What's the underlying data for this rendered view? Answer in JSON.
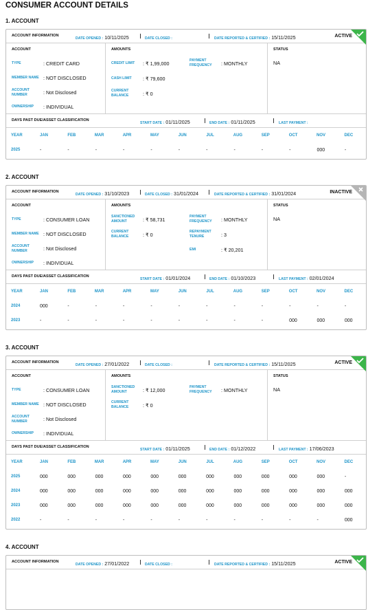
{
  "title": "CONSUMER ACCOUNT DETAILS",
  "accounts": [
    {
      "heading": "1. ACCOUNT",
      "info": {
        "label": "ACCOUNT INFORMATION",
        "items": [
          {
            "label": "DATE OPENED :",
            "value": "10/11/2025"
          },
          {
            "label": "DATE CLOSED :"
          },
          {
            "label": "DATE REPORTED & CERTIFIED :",
            "value": "15/11/2025"
          }
        ],
        "status": "ACTIVE",
        "status_color": "#3cb54a",
        "status_icon": "check"
      },
      "account": {
        "title": "ACCOUNT",
        "fields": [
          {
            "label": "TYPE",
            "value": ": CREDIT CARD"
          },
          {
            "label": "MEMBER NAME",
            "value": ": NOT DISCLOSED"
          },
          {
            "label": "ACCOUNT NUMBER",
            "value": ": Not Disclosed"
          },
          {
            "label": "OWNERSHIP",
            "value": ": INDIVIDUAL"
          }
        ]
      },
      "amounts": {
        "title": "AMOUNTS",
        "left": [
          {
            "label": "CREDIT LIMIT",
            "value": ": ₹ 1,99,000"
          },
          {
            "label": "CASH LIMIT",
            "value": ": ₹ 79,600"
          },
          {
            "label": "CURRENT BALANCE",
            "value": ": ₹ 0"
          }
        ],
        "right": [
          {
            "label": "PAYMENT FREQUENCY",
            "value": ": MONTHLY"
          }
        ]
      },
      "status": {
        "title": "STATUS",
        "value": "NA"
      },
      "dpd": {
        "label": "DAYS PAST DUE/ASSET CLASSIFICATION",
        "items": [
          {
            "label": "START DATE :",
            "value": "01/11/2025"
          },
          {
            "label": "END DATE :",
            "value": "01/11/2025"
          },
          {
            "label": "LAST PAYMENT :"
          }
        ]
      },
      "table": {
        "header": [
          "YEAR",
          "JAN",
          "FEB",
          "MAR",
          "APR",
          "MAY",
          "JUN",
          "JUL",
          "AUG",
          "SEP",
          "OCT",
          "NOV",
          "DEC"
        ],
        "rows": [
          [
            "2025",
            "-",
            "-",
            "-",
            "-",
            "-",
            "-",
            "-",
            "-",
            "-",
            "-",
            "000",
            "-"
          ]
        ]
      }
    },
    {
      "heading": "2. ACCOUNT",
      "info": {
        "label": "ACCOUNT INFORMATION",
        "items": [
          {
            "label": "DATE OPENED :",
            "value": "31/10/2023"
          },
          {
            "label": "DATE CLOSED :",
            "value": "31/01/2024"
          },
          {
            "label": "DATE REPORTED & CERTIFIED :",
            "value": "31/01/2024"
          }
        ],
        "status": "INACTIVE",
        "status_color": "#b5b5b5",
        "status_icon": "cross"
      },
      "account": {
        "title": "ACCOUNT",
        "fields": [
          {
            "label": "TYPE",
            "value": ": CONSUMER LOAN"
          },
          {
            "label": "MEMBER NAME",
            "value": ": NOT DISCLOSED"
          },
          {
            "label": "ACCOUNT NUMBER",
            "value": ": Not Disclosed"
          },
          {
            "label": "OWNERSHIP",
            "value": ": INDIVIDUAL"
          }
        ]
      },
      "amounts": {
        "title": "AMOUNTS",
        "left": [
          {
            "label": "SANCTIONED AMOUNT",
            "value": ": ₹ 58,731"
          },
          {
            "label": "CURRENT BALANCE",
            "value": ": ₹ 0"
          }
        ],
        "right": [
          {
            "label": "PAYMENT FREQUENCY",
            "value": ": MONTHLY"
          },
          {
            "label": "REPAYMENT TENURE",
            "value": ": 3"
          },
          {
            "label": "EMI",
            "value": ": ₹ 20,201"
          }
        ]
      },
      "status": {
        "title": "STATUS",
        "value": "NA"
      },
      "dpd": {
        "label": "DAYS PAST DUE/ASSET CLASSIFICATION",
        "items": [
          {
            "label": "START DATE :",
            "value": "01/01/2024"
          },
          {
            "label": "END DATE :",
            "value": "01/10/2023"
          },
          {
            "label": "LAST PAYMENT :",
            "value": "02/01/2024"
          }
        ]
      },
      "table": {
        "header": [
          "YEAR",
          "JAN",
          "FEB",
          "MAR",
          "APR",
          "MAY",
          "JUN",
          "JUL",
          "AUG",
          "SEP",
          "OCT",
          "NOV",
          "DEC"
        ],
        "rows": [
          [
            "2024",
            "000",
            "-",
            "-",
            "-",
            "-",
            "-",
            "-",
            "-",
            "-",
            "-",
            "-",
            "-"
          ],
          [
            "2023",
            "-",
            "-",
            "-",
            "-",
            "-",
            "-",
            "-",
            "-",
            "-",
            "000",
            "000",
            "000"
          ]
        ]
      }
    },
    {
      "heading": "3. ACCOUNT",
      "info": {
        "label": "ACCOUNT INFORMATION",
        "items": [
          {
            "label": "DATE OPENED :",
            "value": "27/01/2022"
          },
          {
            "label": "DATE CLOSED :"
          },
          {
            "label": "DATE REPORTED & CERTIFIED :",
            "value": "15/11/2025"
          }
        ],
        "status": "ACTIVE",
        "status_color": "#3cb54a",
        "status_icon": "check"
      },
      "account": {
        "title": "ACCOUNT",
        "fields": [
          {
            "label": "TYPE",
            "value": ": CONSUMER LOAN"
          },
          {
            "label": "MEMBER NAME",
            "value": ": NOT DISCLOSED"
          },
          {
            "label": "ACCOUNT NUMBER",
            "value": ": Not Disclosed"
          },
          {
            "label": "OWNERSHIP",
            "value": ": INDIVIDUAL"
          }
        ]
      },
      "amounts": {
        "title": "AMOUNTS",
        "left": [
          {
            "label": "SANCTIONED AMOUNT",
            "value": ": ₹ 12,000"
          },
          {
            "label": "CURRENT BALANCE",
            "value": ": ₹ 0"
          }
        ],
        "right": [
          {
            "label": "PAYMENT FREQUENCY",
            "value": ": MONTHLY"
          }
        ]
      },
      "status": {
        "title": "STATUS",
        "value": "NA"
      },
      "dpd": {
        "label": "DAYS PAST DUE/ASSET CLASSIFICATION",
        "items": [
          {
            "label": "START DATE :",
            "value": "01/11/2025"
          },
          {
            "label": "END DATE :",
            "value": "01/12/2022"
          },
          {
            "label": "LAST PAYMENT :",
            "value": "17/06/2023"
          }
        ]
      },
      "table": {
        "header": [
          "YEAR",
          "JAN",
          "FEB",
          "MAR",
          "APR",
          "MAY",
          "JUN",
          "JUL",
          "AUG",
          "SEP",
          "OCT",
          "NOV",
          "DEC"
        ],
        "rows": [
          [
            "2025",
            "000",
            "000",
            "000",
            "000",
            "000",
            "000",
            "000",
            "000",
            "000",
            "000",
            "000",
            "-"
          ],
          [
            "2024",
            "000",
            "000",
            "000",
            "000",
            "000",
            "000",
            "000",
            "000",
            "000",
            "000",
            "000",
            "000"
          ],
          [
            "2023",
            "000",
            "000",
            "000",
            "000",
            "000",
            "000",
            "000",
            "000",
            "000",
            "000",
            "000",
            "000"
          ],
          [
            "2022",
            "-",
            "-",
            "-",
            "-",
            "-",
            "-",
            "-",
            "-",
            "-",
            "-",
            "-",
            "000"
          ]
        ]
      }
    },
    {
      "heading": "4. ACCOUNT",
      "info": {
        "label": "ACCOUNT INFORMATION",
        "items": [
          {
            "label": "DATE OPENED :",
            "value": "27/01/2022"
          },
          {
            "label": "DATE CLOSED :"
          },
          {
            "label": "DATE REPORTED & CERTIFIED :",
            "value": "15/11/2025"
          }
        ],
        "status": "ACTIVE",
        "status_color": "#3cb54a",
        "status_icon": "check"
      }
    }
  ]
}
